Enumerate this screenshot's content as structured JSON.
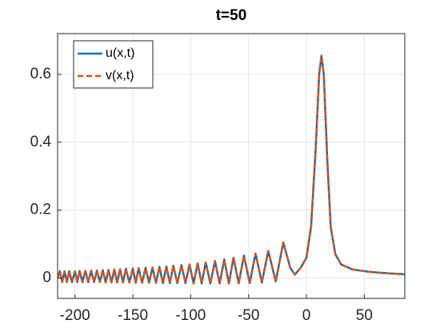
{
  "chart_data": {
    "type": "line",
    "title": "t=50",
    "x": [
      -215,
      -213,
      -211,
      -209,
      -207,
      -205,
      -202.5,
      -200,
      -198,
      -196,
      -193.5,
      -191,
      -188.5,
      -186,
      -183.5,
      -181,
      -178.5,
      -176,
      -173.5,
      -171,
      -168.5,
      -166,
      -163.5,
      -161,
      -158.5,
      -156,
      -153,
      -150,
      -147.5,
      -145,
      -142,
      -139,
      -136,
      -133,
      -130,
      -127,
      -124,
      -121,
      -118,
      -115,
      -111.5,
      -108,
      -104.5,
      -101,
      -97.5,
      -94,
      -90.5,
      -87,
      -83,
      -79,
      -75,
      -71,
      -67,
      -63,
      -58.5,
      -54,
      -49,
      -44,
      -38.5,
      -33,
      -26.5,
      -20,
      -14,
      -10,
      -5,
      0,
      4,
      8,
      11,
      13,
      15,
      18,
      21,
      25,
      30,
      40,
      55,
      70,
      85
    ],
    "series": [
      {
        "name": "u(x,t)",
        "color": "#0072BD",
        "dash": false,
        "values": [
          0.0,
          0.02,
          -0.012,
          0.02,
          -0.012,
          0.02,
          -0.012,
          0.02,
          -0.012,
          0.021,
          -0.012,
          0.021,
          -0.012,
          0.022,
          -0.012,
          0.022,
          -0.012,
          0.023,
          -0.013,
          0.024,
          -0.013,
          0.025,
          -0.013,
          0.026,
          -0.013,
          0.027,
          -0.013,
          0.028,
          -0.014,
          0.029,
          -0.014,
          0.03,
          -0.014,
          0.031,
          -0.014,
          0.033,
          -0.015,
          0.034,
          -0.015,
          0.036,
          -0.015,
          0.038,
          -0.015,
          0.04,
          -0.016,
          0.043,
          -0.016,
          0.046,
          -0.016,
          0.05,
          -0.016,
          0.055,
          -0.016,
          0.06,
          -0.016,
          0.066,
          -0.015,
          0.072,
          -0.013,
          0.08,
          -0.01,
          0.105,
          0.03,
          0.01,
          0.03,
          0.06,
          0.15,
          0.38,
          0.6,
          0.655,
          0.6,
          0.35,
          0.15,
          0.07,
          0.04,
          0.025,
          0.018,
          0.014,
          0.011
        ]
      },
      {
        "name": "v(x,t)",
        "color": "#D95319",
        "dash": true,
        "values": [
          0.0,
          0.02,
          -0.012,
          0.02,
          -0.012,
          0.02,
          -0.012,
          0.02,
          -0.012,
          0.021,
          -0.012,
          0.021,
          -0.012,
          0.022,
          -0.012,
          0.022,
          -0.012,
          0.023,
          -0.013,
          0.024,
          -0.013,
          0.025,
          -0.013,
          0.026,
          -0.013,
          0.027,
          -0.013,
          0.028,
          -0.014,
          0.029,
          -0.014,
          0.03,
          -0.014,
          0.031,
          -0.014,
          0.033,
          -0.015,
          0.034,
          -0.015,
          0.036,
          -0.015,
          0.038,
          -0.015,
          0.04,
          -0.016,
          0.043,
          -0.016,
          0.046,
          -0.016,
          0.05,
          -0.016,
          0.055,
          -0.016,
          0.06,
          -0.016,
          0.066,
          -0.015,
          0.072,
          -0.013,
          0.08,
          -0.01,
          0.105,
          0.03,
          0.01,
          0.03,
          0.06,
          0.15,
          0.38,
          0.6,
          0.655,
          0.6,
          0.35,
          0.15,
          0.07,
          0.04,
          0.025,
          0.018,
          0.014,
          0.011
        ]
      }
    ],
    "xlim": [
      -215,
      85
    ],
    "ylim": [
      -0.06,
      0.72
    ],
    "xticks": [
      -200,
      -150,
      -100,
      -50,
      0,
      50
    ],
    "yticks": [
      0,
      0.2,
      0.4,
      0.6
    ],
    "grid": true,
    "legend": "northwest"
  }
}
